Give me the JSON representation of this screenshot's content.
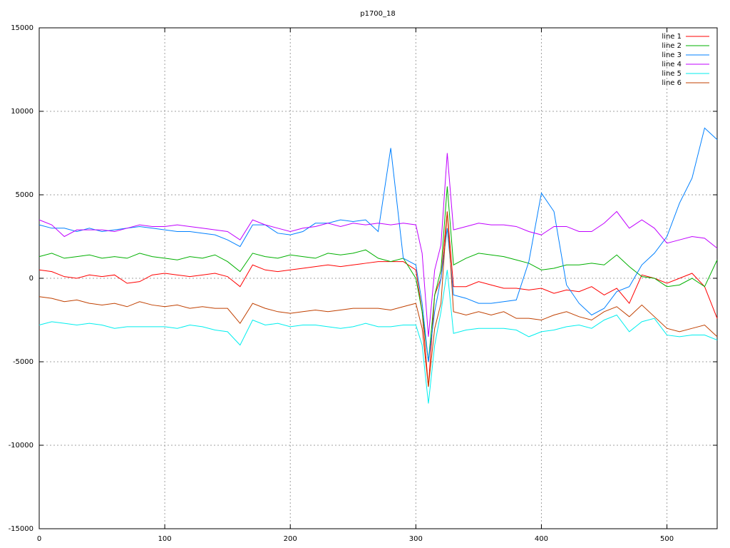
{
  "chart_data": {
    "type": "line",
    "title": "p1700_18",
    "x": [
      0,
      10,
      20,
      30,
      40,
      50,
      60,
      70,
      80,
      90,
      100,
      110,
      120,
      130,
      140,
      150,
      160,
      170,
      180,
      190,
      200,
      210,
      220,
      230,
      240,
      250,
      260,
      270,
      280,
      290,
      300,
      305,
      310,
      315,
      320,
      325,
      330,
      340,
      350,
      360,
      370,
      380,
      390,
      400,
      410,
      420,
      430,
      440,
      450,
      460,
      470,
      480,
      490,
      500,
      510,
      520,
      530,
      540
    ],
    "xlim": [
      0,
      540
    ],
    "xticks": [
      0,
      100,
      200,
      300,
      400,
      500
    ],
    "ylim": [
      -15000,
      15000
    ],
    "yticks": [
      -15000,
      -10000,
      -5000,
      0,
      5000,
      10000,
      15000
    ],
    "grid": true,
    "legend": "top-right",
    "series": [
      {
        "name": "line 1",
        "color": "#ff0000",
        "values": [
          500,
          400,
          100,
          0,
          200,
          100,
          200,
          -300,
          -200,
          200,
          300,
          200,
          100,
          200,
          300,
          100,
          -500,
          800,
          500,
          400,
          500,
          600,
          700,
          800,
          700,
          800,
          900,
          1000,
          1000,
          1000,
          500,
          -2000,
          -6500,
          -1000,
          0,
          4000,
          -500,
          -500,
          -200,
          -400,
          -600,
          -600,
          -700,
          -600,
          -900,
          -700,
          -800,
          -500,
          -1000,
          -600,
          -1500,
          200,
          0,
          -300,
          0,
          300,
          -500,
          -2400
        ]
      },
      {
        "name": "line 2",
        "color": "#00b000",
        "values": [
          1300,
          1500,
          1200,
          1300,
          1400,
          1200,
          1300,
          1200,
          1500,
          1300,
          1200,
          1100,
          1300,
          1200,
          1400,
          1000,
          400,
          1500,
          1300,
          1200,
          1400,
          1300,
          1200,
          1500,
          1400,
          1500,
          1700,
          1200,
          1000,
          1200,
          0,
          -2000,
          -5000,
          -1000,
          500,
          5500,
          800,
          1200,
          1500,
          1400,
          1300,
          1100,
          900,
          500,
          600,
          800,
          800,
          900,
          800,
          1400,
          700,
          100,
          0,
          -500,
          -400,
          0,
          -500,
          1100
        ]
      },
      {
        "name": "line 3",
        "color": "#0080ff",
        "values": [
          3200,
          3000,
          3000,
          2800,
          3000,
          2800,
          2900,
          3000,
          3100,
          3000,
          2900,
          2800,
          2800,
          2700,
          2600,
          2300,
          1900,
          3200,
          3200,
          2700,
          2600,
          2800,
          3300,
          3300,
          3500,
          3400,
          3500,
          2800,
          7800,
          1200,
          800,
          -1500,
          -5000,
          -2000,
          0,
          3000,
          -1000,
          -1200,
          -1500,
          -1500,
          -1400,
          -1300,
          1000,
          5100,
          4000,
          -400,
          -1500,
          -2200,
          -1800,
          -800,
          -500,
          800,
          1500,
          2500,
          4500,
          6000,
          9000,
          8300
        ]
      },
      {
        "name": "line 4",
        "color": "#c000ff",
        "values": [
          3500,
          3200,
          2500,
          2900,
          2900,
          2900,
          2800,
          3000,
          3200,
          3100,
          3100,
          3200,
          3100,
          3000,
          2900,
          2800,
          2300,
          3500,
          3200,
          3000,
          2800,
          3000,
          3100,
          3300,
          3100,
          3300,
          3200,
          3300,
          3200,
          3300,
          3200,
          1500,
          -3500,
          500,
          2000,
          7500,
          2900,
          3100,
          3300,
          3200,
          3200,
          3100,
          2800,
          2600,
          3100,
          3100,
          2800,
          2800,
          3300,
          4000,
          3000,
          3500,
          3000,
          2100,
          2300,
          2500,
          2400,
          1800
        ]
      },
      {
        "name": "line 5",
        "color": "#00eeee",
        "values": [
          -2800,
          -2600,
          -2700,
          -2800,
          -2700,
          -2800,
          -3000,
          -2900,
          -2900,
          -2900,
          -2900,
          -3000,
          -2800,
          -2900,
          -3100,
          -3200,
          -4000,
          -2500,
          -2800,
          -2700,
          -2900,
          -2800,
          -2800,
          -2900,
          -3000,
          -2900,
          -2700,
          -2900,
          -2900,
          -2800,
          -2800,
          -4000,
          -7500,
          -4000,
          -2000,
          500,
          -3300,
          -3100,
          -3000,
          -3000,
          -3000,
          -3100,
          -3500,
          -3200,
          -3100,
          -2900,
          -2800,
          -3000,
          -2500,
          -2200,
          -3200,
          -2600,
          -2400,
          -3400,
          -3500,
          -3400,
          -3400,
          -3700
        ]
      },
      {
        "name": "line 6",
        "color": "#c04000",
        "values": [
          -1100,
          -1200,
          -1400,
          -1300,
          -1500,
          -1600,
          -1500,
          -1700,
          -1400,
          -1600,
          -1700,
          -1600,
          -1800,
          -1700,
          -1800,
          -1800,
          -2700,
          -1500,
          -1800,
          -2000,
          -2100,
          -2000,
          -1900,
          -2000,
          -1900,
          -1800,
          -1800,
          -1800,
          -1900,
          -1700,
          -1500,
          -3000,
          -6500,
          -3000,
          -1500,
          4000,
          -2000,
          -2200,
          -2000,
          -2200,
          -2000,
          -2400,
          -2400,
          -2500,
          -2200,
          -2000,
          -2300,
          -2500,
          -2000,
          -1700,
          -2300,
          -1600,
          -2300,
          -3000,
          -3200,
          -3000,
          -2800,
          -3500
        ]
      }
    ]
  }
}
